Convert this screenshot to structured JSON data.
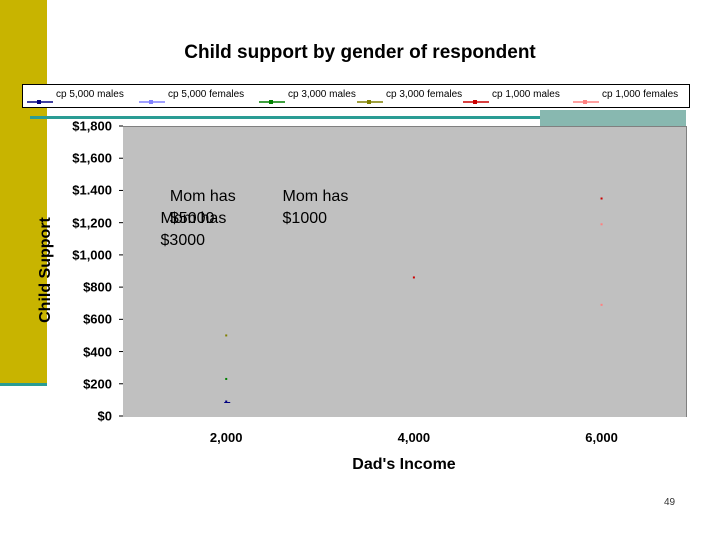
{
  "chart_data": {
    "type": "scatter",
    "title": "Child support by gender of respondent",
    "xlabel": "Dad's Income",
    "ylabel": "Child Support",
    "xlim": [
      900,
      6900
    ],
    "ylim": [
      0,
      1800
    ],
    "x_ticks": [
      {
        "value": 2000,
        "label": "2,000"
      },
      {
        "value": 4000,
        "label": "4,000"
      },
      {
        "value": 6000,
        "label": "6,000"
      }
    ],
    "y_ticks": [
      {
        "value": 0,
        "label": "$0"
      },
      {
        "value": 200,
        "label": "$200"
      },
      {
        "value": 400,
        "label": "$400"
      },
      {
        "value": 600,
        "label": "$600"
      },
      {
        "value": 800,
        "label": "$800"
      },
      {
        "value": 1000,
        "label": "$1,000"
      },
      {
        "value": 1200,
        "label": "$1,200"
      },
      {
        "value": 1400,
        "label": "$1.400"
      },
      {
        "value": 1600,
        "label": "$1,600"
      },
      {
        "value": 1800,
        "label": "$1,800"
      }
    ],
    "legend_position": "top",
    "series": [
      {
        "name": "cp 5,000 males",
        "color": "#000080",
        "points": [
          {
            "x": 2000,
            "y": 90
          }
        ]
      },
      {
        "name": "cp 5,000 females",
        "color": "#8080ff",
        "points": []
      },
      {
        "name": "cp 3,000 males",
        "color": "#008000",
        "points": [
          {
            "x": 2000,
            "y": 230
          }
        ]
      },
      {
        "name": "cp 3,000 females",
        "color": "#808000",
        "points": [
          {
            "x": 2000,
            "y": 500
          }
        ]
      },
      {
        "name": "cp 1,000 males",
        "color": "#cc0000",
        "points": [
          {
            "x": 4000,
            "y": 860
          },
          {
            "x": 6000,
            "y": 1350
          }
        ]
      },
      {
        "name": "cp 1,000 females",
        "color": "#ff8080",
        "points": [
          {
            "x": 6000,
            "y": 690
          },
          {
            "x": 6000,
            "y": 1190
          }
        ]
      }
    ],
    "annotations": [
      {
        "text": "Mom has $5000",
        "x": 1400,
        "y": 1430
      },
      {
        "text": "Mom has $1000",
        "x": 2600,
        "y": 1430
      },
      {
        "text": "Mom has $3000",
        "x": 1300,
        "y": 1290
      }
    ]
  },
  "page_number": "49"
}
